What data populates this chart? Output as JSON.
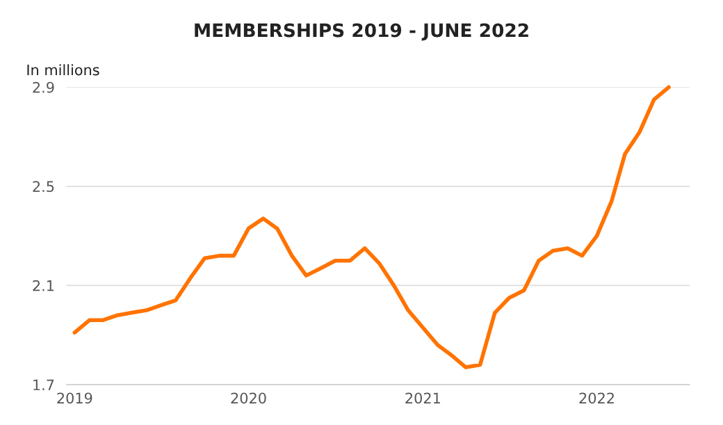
{
  "chart_data": {
    "type": "line",
    "title": "MEMBERSHIPS 2019 - JUNE 2022",
    "ylabel": "In millions",
    "x": [
      "2019-01",
      "2019-02",
      "2019-03",
      "2019-04",
      "2019-05",
      "2019-06",
      "2019-07",
      "2019-08",
      "2019-09",
      "2019-10",
      "2019-11",
      "2019-12",
      "2020-01",
      "2020-02",
      "2020-03",
      "2020-04",
      "2020-05",
      "2020-06",
      "2020-07",
      "2020-08",
      "2020-09",
      "2020-10",
      "2020-11",
      "2020-12",
      "2021-01",
      "2021-02",
      "2021-03",
      "2021-04",
      "2021-05",
      "2021-06",
      "2021-07",
      "2021-08",
      "2021-09",
      "2021-10",
      "2021-11",
      "2021-12",
      "2022-01",
      "2022-02",
      "2022-03",
      "2022-04",
      "2022-05",
      "2022-06"
    ],
    "series": [
      {
        "color": "#ff7300",
        "values": [
          1.91,
          1.96,
          1.96,
          1.98,
          1.99,
          2.0,
          2.02,
          2.04,
          2.13,
          2.21,
          2.22,
          2.22,
          2.33,
          2.37,
          2.33,
          2.22,
          2.14,
          2.17,
          2.2,
          2.2,
          2.25,
          2.19,
          2.1,
          2.0,
          1.93,
          1.86,
          1.82,
          1.77,
          1.78,
          1.99,
          2.05,
          2.08,
          2.2,
          2.24,
          2.25,
          2.22,
          2.3,
          2.44,
          2.63,
          2.72,
          2.85,
          2.9
        ]
      }
    ],
    "xlim": [
      "2018-12-15",
      "2022-07-15"
    ],
    "xticks": [
      {
        "value": "2019-01-01",
        "label": "2019"
      },
      {
        "value": "2020-01-01",
        "label": "2020"
      },
      {
        "value": "2021-01-01",
        "label": "2021"
      },
      {
        "value": "2022-01-01",
        "label": "2022"
      }
    ],
    "ylim": [
      1.7,
      2.9
    ],
    "yticks": [
      1.7,
      2.1,
      2.5,
      2.9
    ],
    "grid": "y",
    "marker": "none",
    "line_style": "solid"
  }
}
